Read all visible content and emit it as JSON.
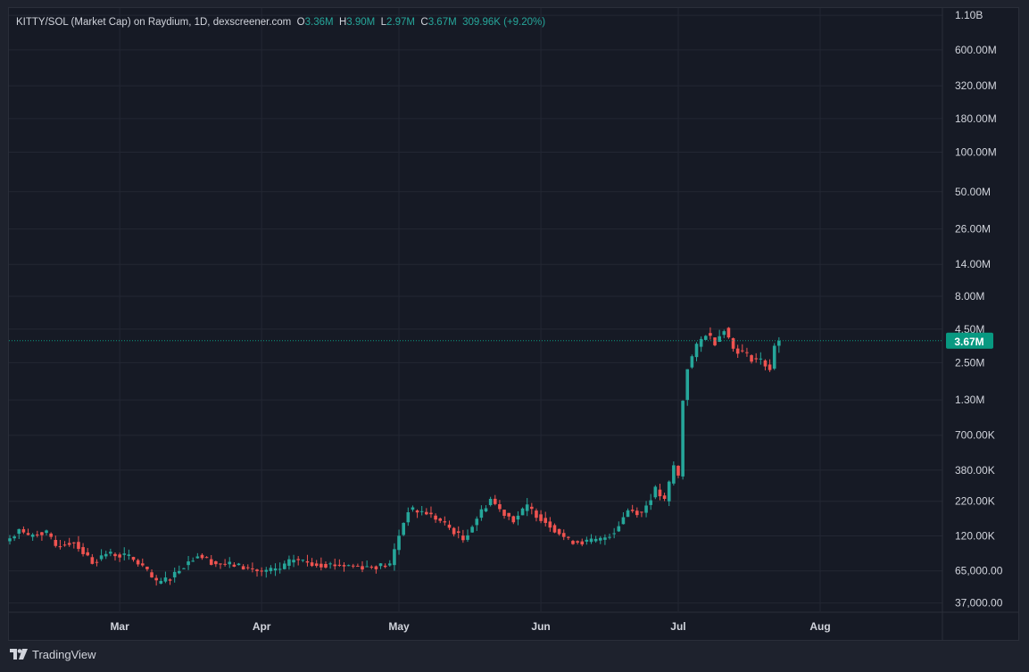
{
  "legend": {
    "symbol": "KITTY/SOL (Market Cap) on Raydium, 1D, dexscreener.com",
    "o_label": "O",
    "o_value": "3.36M",
    "h_label": "H",
    "h_value": "3.90M",
    "l_label": "L",
    "l_value": "2.97M",
    "c_label": "C",
    "c_value": "3.67M",
    "change": "309.96K (+9.20%)"
  },
  "footer": {
    "brand": "TradingView",
    "logo_icon": "tradingview-logo-icon"
  },
  "colors": {
    "up": "#26a69a",
    "down": "#ef5350",
    "grid": "#232733",
    "text": "#d1d4dc",
    "price_tag": "#089981"
  },
  "chart_data": {
    "type": "candlestick",
    "title": "KITTY/SOL (Market Cap) on Raydium, 1D, dexscreener.com",
    "scale": "log",
    "ylim": [
      32000,
      1250000000
    ],
    "last_price": 3670000,
    "last_price_label": "3.67M",
    "y_ticks": [
      {
        "value": 1100000000,
        "label": "1.10B"
      },
      {
        "value": 600000000,
        "label": "600.00M"
      },
      {
        "value": 320000000,
        "label": "320.00M"
      },
      {
        "value": 180000000,
        "label": "180.00M"
      },
      {
        "value": 100000000,
        "label": "100.00M"
      },
      {
        "value": 50000000,
        "label": "50.00M"
      },
      {
        "value": 26000000,
        "label": "26.00M"
      },
      {
        "value": 14000000,
        "label": "14.00M"
      },
      {
        "value": 8000000,
        "label": "8.00M"
      },
      {
        "value": 4500000,
        "label": "4.50M"
      },
      {
        "value": 2500000,
        "label": "2.50M"
      },
      {
        "value": 1300000,
        "label": "1.30M"
      },
      {
        "value": 700000,
        "label": "700.00K"
      },
      {
        "value": 380000,
        "label": "380.00K"
      },
      {
        "value": 220000,
        "label": "220.00K"
      },
      {
        "value": 120000,
        "label": "120.00K"
      },
      {
        "value": 65000,
        "label": "65,000.00"
      },
      {
        "value": 37000,
        "label": "37,000.00"
      }
    ],
    "x_ticks": [
      {
        "date": "2024-03-01",
        "label": "Mar"
      },
      {
        "date": "2024-04-01",
        "label": "Apr"
      },
      {
        "date": "2024-05-01",
        "label": "May"
      },
      {
        "date": "2024-06-01",
        "label": "Jun"
      },
      {
        "date": "2024-07-01",
        "label": "Jul"
      },
      {
        "date": "2024-08-01",
        "label": "Aug"
      }
    ],
    "first_date": "2024-02-06",
    "close_points": [
      [
        "2024-02-06",
        115000
      ],
      [
        "2024-02-08",
        135000
      ],
      [
        "2024-02-10",
        118000
      ],
      [
        "2024-02-12",
        128000
      ],
      [
        "2024-02-14",
        125000
      ],
      [
        "2024-02-16",
        100000
      ],
      [
        "2024-02-18",
        106000
      ],
      [
        "2024-02-20",
        108000
      ],
      [
        "2024-02-22",
        90000
      ],
      [
        "2024-02-24",
        76000
      ],
      [
        "2024-02-27",
        88000
      ],
      [
        "2024-03-01",
        86000
      ],
      [
        "2024-03-03",
        83000
      ],
      [
        "2024-03-06",
        70000
      ],
      [
        "2024-03-09",
        52000
      ],
      [
        "2024-03-12",
        58000
      ],
      [
        "2024-03-15",
        72000
      ],
      [
        "2024-03-18",
        86000
      ],
      [
        "2024-03-22",
        74000
      ],
      [
        "2024-03-26",
        72000
      ],
      [
        "2024-04-01",
        64000
      ],
      [
        "2024-04-05",
        67000
      ],
      [
        "2024-04-08",
        80000
      ],
      [
        "2024-04-12",
        74000
      ],
      [
        "2024-04-18",
        72000
      ],
      [
        "2024-04-24",
        70000
      ],
      [
        "2024-04-29",
        72000
      ],
      [
        "2024-05-01",
        122000
      ],
      [
        "2024-05-03",
        190000
      ],
      [
        "2024-05-07",
        180000
      ],
      [
        "2024-05-10",
        155000
      ],
      [
        "2024-05-13",
        130000
      ],
      [
        "2024-05-15",
        112000
      ],
      [
        "2024-05-18",
        165000
      ],
      [
        "2024-05-21",
        230000
      ],
      [
        "2024-05-23",
        190000
      ],
      [
        "2024-05-26",
        160000
      ],
      [
        "2024-05-29",
        200000
      ],
      [
        "2024-05-31",
        175000
      ],
      [
        "2024-06-03",
        145000
      ],
      [
        "2024-06-07",
        110000
      ],
      [
        "2024-06-11",
        108000
      ],
      [
        "2024-06-14",
        112000
      ],
      [
        "2024-06-17",
        130000
      ],
      [
        "2024-06-20",
        190000
      ],
      [
        "2024-06-23",
        180000
      ],
      [
        "2024-06-26",
        270000
      ],
      [
        "2024-06-28",
        220000
      ],
      [
        "2024-06-30",
        410000
      ],
      [
        "2024-07-01",
        340000
      ],
      [
        "2024-07-02",
        1300000
      ],
      [
        "2024-07-03",
        2300000
      ],
      [
        "2024-07-05",
        3300000
      ],
      [
        "2024-07-07",
        4200000
      ],
      [
        "2024-07-09",
        3600000
      ],
      [
        "2024-07-11",
        4600000
      ],
      [
        "2024-07-13",
        3200000
      ],
      [
        "2024-07-15",
        3000000
      ],
      [
        "2024-07-17",
        2700000
      ],
      [
        "2024-07-19",
        2600000
      ],
      [
        "2024-07-21",
        2250000
      ],
      [
        "2024-07-22",
        3360000
      ],
      [
        "2024-07-23",
        3670000
      ]
    ]
  }
}
